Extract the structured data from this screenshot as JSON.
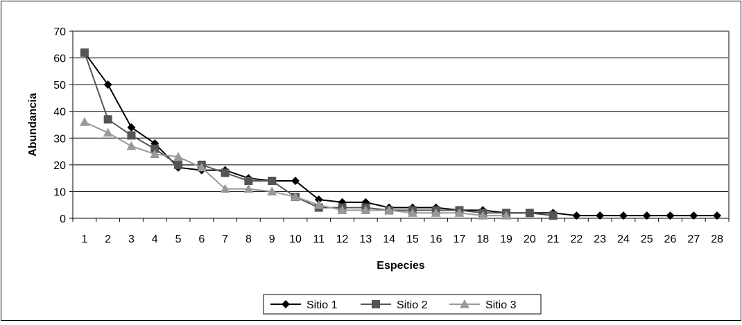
{
  "chart_data": {
    "type": "line",
    "title": "",
    "xlabel": "Especies",
    "ylabel": "Abundancia",
    "ylim": [
      0,
      70
    ],
    "ytick_step": 10,
    "categories": [
      "1",
      "2",
      "3",
      "4",
      "5",
      "6",
      "7",
      "8",
      "9",
      "10",
      "11",
      "12",
      "13",
      "14",
      "15",
      "16",
      "17",
      "18",
      "19",
      "20",
      "21",
      "22",
      "23",
      "24",
      "25",
      "26",
      "27",
      "28"
    ],
    "grid": "horizontal",
    "legend_position": "bottom",
    "series": [
      {
        "name": "Sitio 1",
        "marker": "diamond",
        "color": "#000000",
        "values": [
          62,
          50,
          34,
          28,
          19,
          18,
          18,
          15,
          14,
          14,
          7,
          6,
          6,
          4,
          4,
          4,
          3,
          3,
          2,
          2,
          2,
          1,
          1,
          1,
          1,
          1,
          1,
          1
        ]
      },
      {
        "name": "Sitio 2",
        "marker": "square",
        "color": "#555555",
        "values": [
          62,
          37,
          31,
          26,
          20,
          20,
          17,
          14,
          14,
          8,
          4,
          4,
          4,
          3,
          3,
          3,
          3,
          2,
          2,
          2,
          1,
          null,
          null,
          null,
          null,
          null,
          null,
          null
        ]
      },
      {
        "name": "Sitio 3",
        "marker": "triangle",
        "color": "#999999",
        "values": [
          36,
          32,
          27,
          24,
          23,
          19,
          11,
          11,
          10,
          8,
          5,
          3,
          3,
          3,
          2,
          2,
          2,
          1,
          1,
          null,
          null,
          null,
          null,
          null,
          null,
          null,
          null,
          null
        ]
      }
    ]
  },
  "colors": {
    "plot_border": "#808080",
    "outer_border": "#000000",
    "gridline": "#000000",
    "background": "#ffffff"
  }
}
